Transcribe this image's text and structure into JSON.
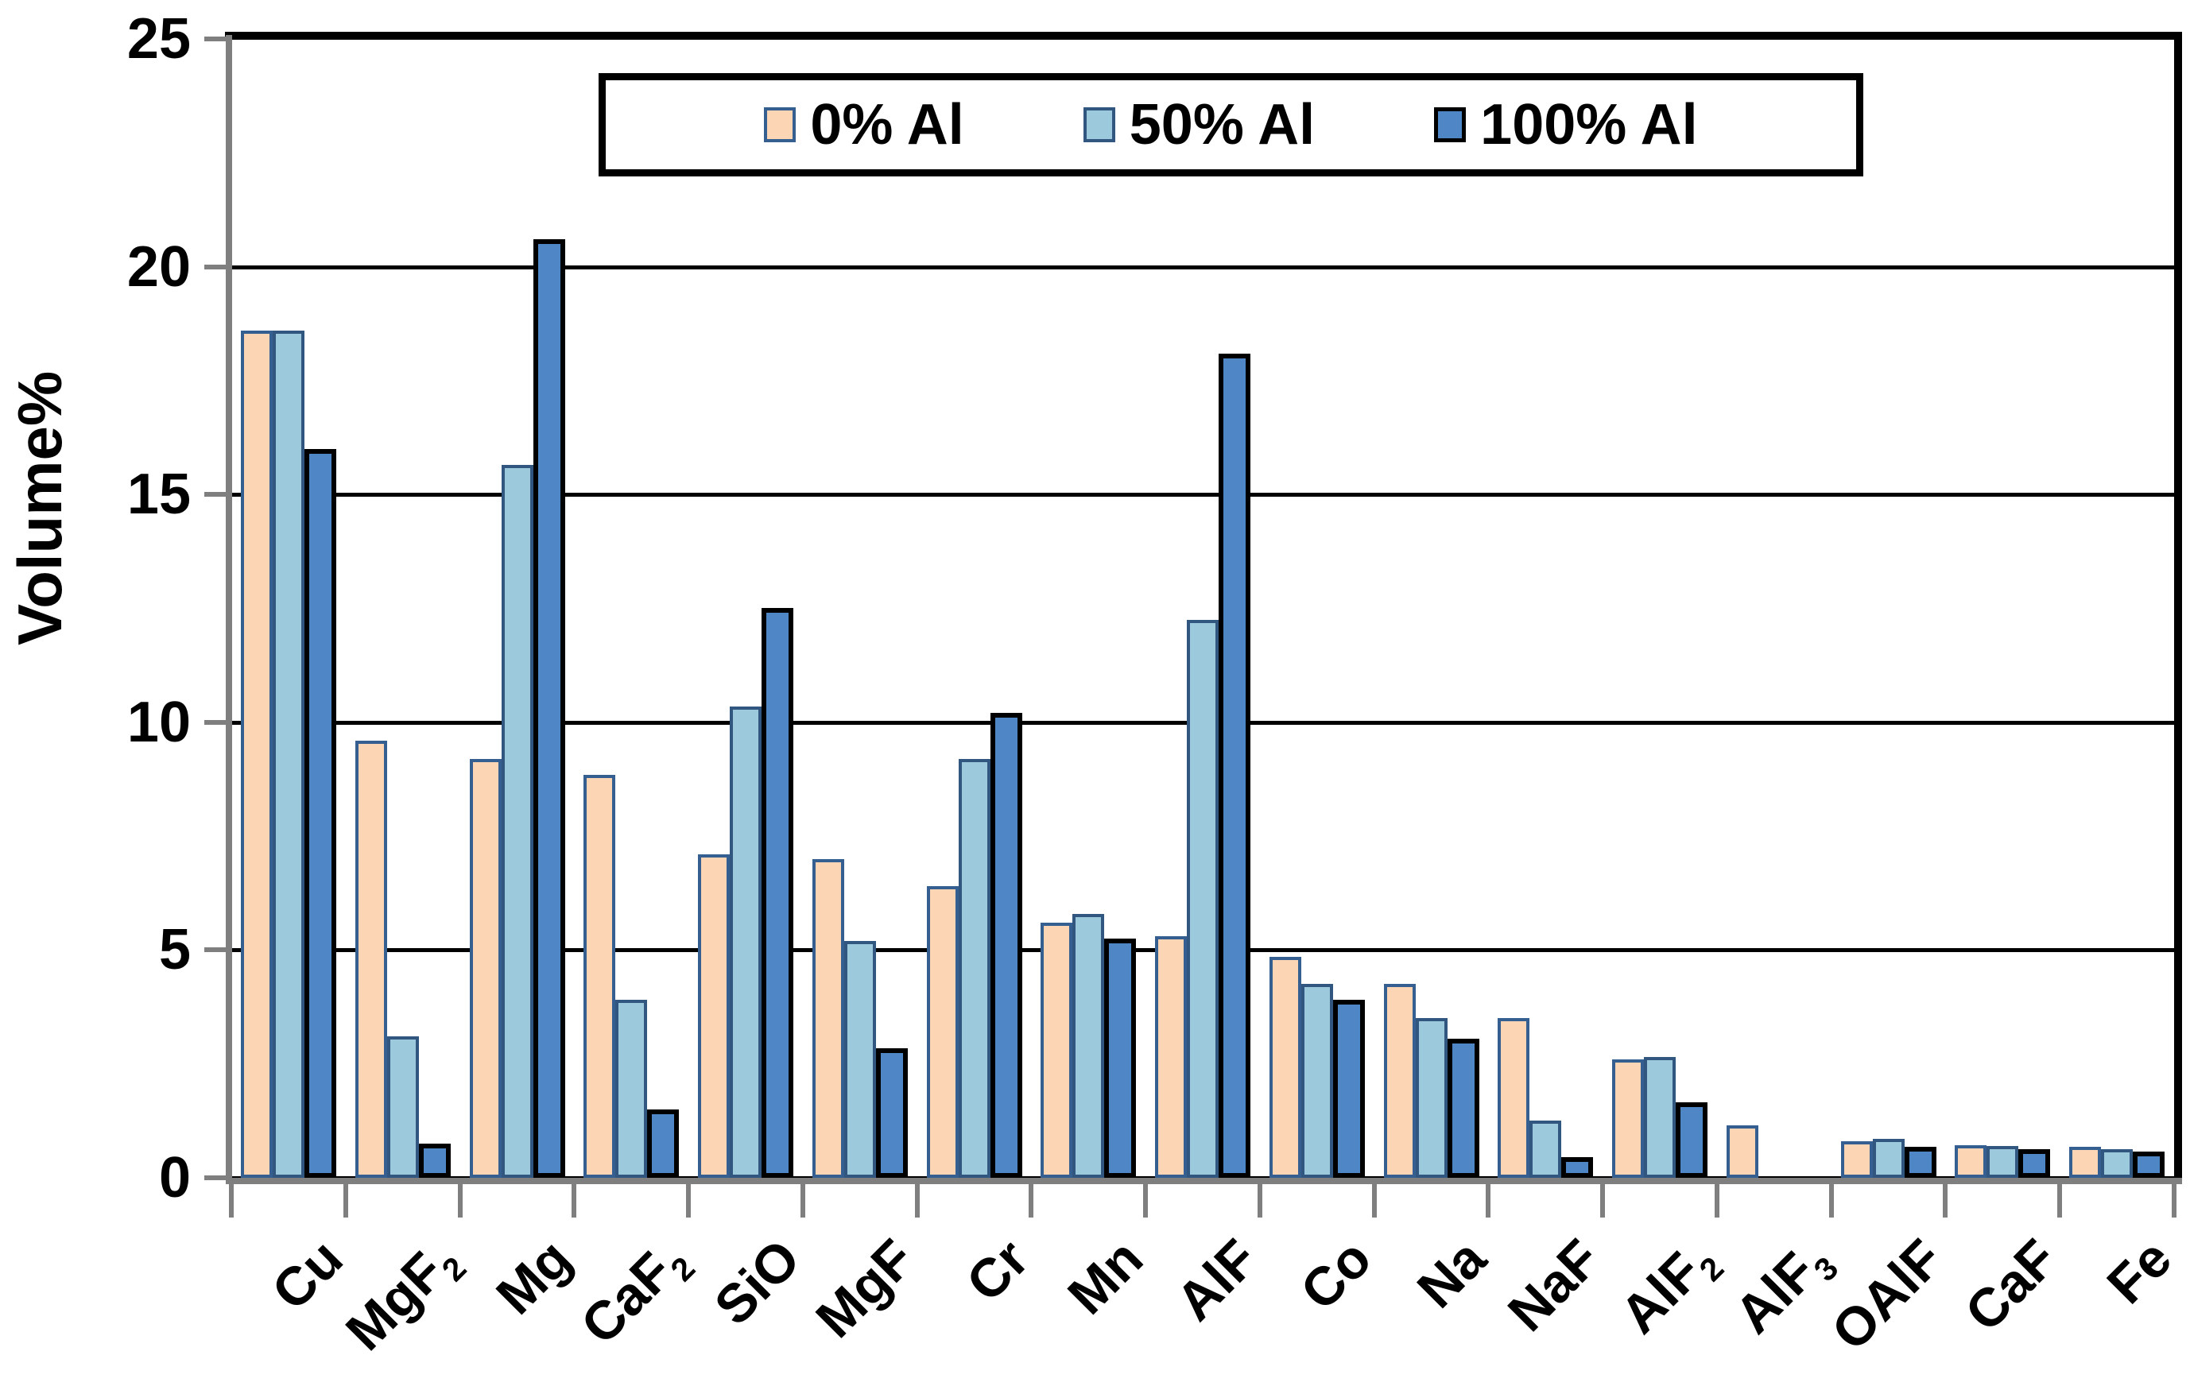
{
  "chart_data": {
    "type": "bar",
    "title": "",
    "ylabel": "Volume%",
    "xlabel": "",
    "ylim": [
      0,
      25
    ],
    "yticks": [
      0,
      5,
      10,
      15,
      20,
      25
    ],
    "grid": "horizontal",
    "gridline_color": "#000000",
    "axis_color": "#7f7f7f",
    "legend_position": "top-center-inside",
    "categories": [
      {
        "t": "Cu",
        "sub": ""
      },
      {
        "t": "MgF",
        "sub": "2"
      },
      {
        "t": "Mg",
        "sub": ""
      },
      {
        "t": "CaF",
        "sub": "2"
      },
      {
        "t": "SiO",
        "sub": ""
      },
      {
        "t": "MgF",
        "sub": ""
      },
      {
        "t": "Cr",
        "sub": ""
      },
      {
        "t": "Mn",
        "sub": ""
      },
      {
        "t": "AlF",
        "sub": ""
      },
      {
        "t": "Co",
        "sub": ""
      },
      {
        "t": "Na",
        "sub": ""
      },
      {
        "t": "NaF",
        "sub": ""
      },
      {
        "t": "AlF",
        "sub": "2"
      },
      {
        "t": "AlF",
        "sub": "3"
      },
      {
        "t": "OAlF",
        "sub": ""
      },
      {
        "t": "CaF",
        "sub": ""
      },
      {
        "t": "Fe",
        "sub": ""
      }
    ],
    "series": [
      {
        "name": "0% Al",
        "fill": "#FBD5B4",
        "border": "#365F91",
        "border_px": 4,
        "values": [
          18.6,
          9.6,
          9.2,
          8.85,
          7.1,
          7.0,
          6.4,
          5.6,
          5.3,
          4.85,
          4.25,
          3.5,
          2.6,
          1.15,
          0.8,
          0.72,
          0.68
        ]
      },
      {
        "name": "50% Al",
        "fill": "#9CC9DB",
        "border": "#31567F",
        "border_px": 4,
        "values": [
          18.6,
          3.1,
          15.65,
          3.9,
          10.35,
          5.2,
          9.2,
          5.8,
          12.25,
          4.25,
          3.5,
          1.25,
          2.65,
          0,
          0.85,
          0.7,
          0.62
        ]
      },
      {
        "name": "100% Al",
        "fill": "#4F86C6",
        "border": "#000000",
        "border_px": 6,
        "values": [
          16.0,
          0.75,
          20.6,
          1.5,
          12.5,
          2.85,
          10.2,
          5.25,
          18.1,
          3.9,
          3.05,
          0.45,
          1.65,
          0,
          0.68,
          0.62,
          0.57
        ]
      }
    ]
  }
}
